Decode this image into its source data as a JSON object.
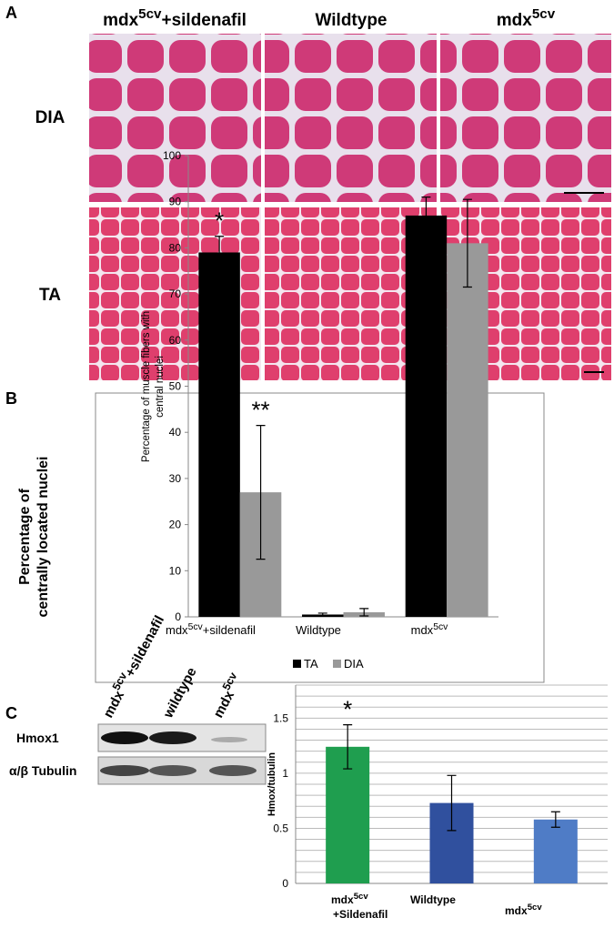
{
  "panels": {
    "a": {
      "label": "A",
      "columns": [
        [
          "mdx",
          "5cv",
          "+sildenafil"
        ],
        [
          "Wildtype"
        ],
        [
          "mdx",
          "5cv"
        ]
      ],
      "rows": [
        "DIA",
        "TA"
      ]
    },
    "b": {
      "label": "B",
      "side_label": [
        "Percentage of",
        "centrally located nuclei"
      ],
      "chart_data": {
        "type": "bar",
        "y_label": [
          "Percentage of muscle fibers with",
          "central nuclei"
        ],
        "categories": [
          [
            "mdx",
            "5cv",
            "+sildenafil"
          ],
          [
            "Wildtype"
          ],
          [
            "mdx",
            "5cv"
          ]
        ],
        "series": [
          {
            "name": "TA",
            "color": "#000000",
            "values": [
              79,
              0.5,
              87
            ],
            "errors": [
              3.5,
              0.3,
              4
            ],
            "annotations": [
              "*",
              null,
              null
            ]
          },
          {
            "name": "DIA",
            "color": "#999999",
            "values": [
              27,
              1,
              81
            ],
            "errors": [
              14.5,
              0.8,
              9.5
            ],
            "annotations": [
              "**",
              null,
              null
            ]
          }
        ],
        "ylim": [
          0,
          100
        ],
        "yticks": [
          0,
          10,
          20,
          30,
          40,
          50,
          60,
          70,
          80,
          90,
          100
        ],
        "legend": "bottom"
      }
    },
    "c": {
      "label": "C",
      "blot": {
        "lanes": [
          [
            "mdx",
            "5cv",
            "+sildenafil"
          ],
          [
            "wildtype"
          ],
          [
            "mdx",
            "5cv"
          ]
        ],
        "rows": [
          "Hmox1",
          "α/β Tubulin"
        ]
      },
      "chart_data": {
        "type": "bar",
        "y_label": "Hmox/tubulin",
        "categories": [
          [
            "mdx",
            "5cv",
            "+Sildenafil"
          ],
          [
            "Wildtype"
          ],
          [
            "mdx",
            "5cv"
          ]
        ],
        "series": [
          {
            "colors": [
              "#1f9e4f",
              "#30509e",
              "#4f7cc6"
            ],
            "values": [
              1.24,
              0.73,
              0.58
            ],
            "errors": [
              0.2,
              0.25,
              0.07
            ],
            "annotations": [
              "*",
              null,
              null
            ]
          }
        ],
        "ylim": [
          0,
          1.8
        ],
        "yticks": [
          0,
          0.5,
          1,
          1.5
        ],
        "minor_yticks": [
          0.1,
          0.2,
          0.3,
          0.4,
          0.6,
          0.7,
          0.8,
          0.9,
          1.1,
          1.2,
          1.3,
          1.4,
          1.6,
          1.7,
          1.8
        ],
        "grid": true
      }
    }
  }
}
